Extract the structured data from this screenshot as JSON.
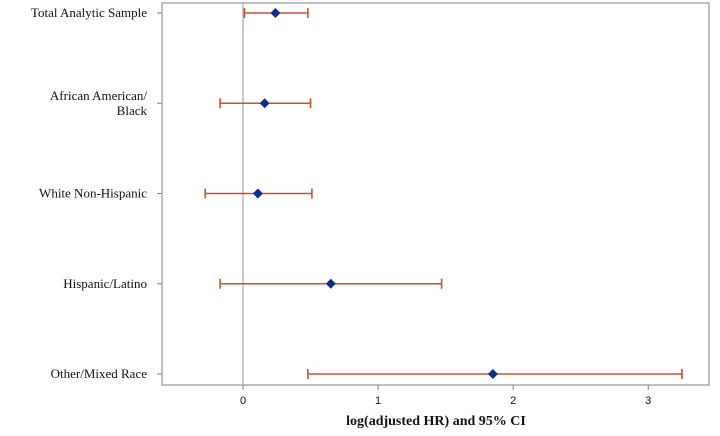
{
  "chart_data": {
    "type": "forest",
    "xlabel": "log(adjusted HR) and 95% CI",
    "ylabel": "",
    "xlim": [
      -0.6,
      3.45
    ],
    "xticks": [
      0,
      1,
      2,
      3
    ],
    "reference_line": 0,
    "grid": false,
    "categories": [
      [
        "Total Analytic Sample"
      ],
      [
        "African American/",
        "Black"
      ],
      [
        "White Non-Hispanic"
      ],
      [
        "Hispanic/Latino"
      ],
      [
        "Other/Mixed Race"
      ]
    ],
    "points": [
      {
        "estimate": 0.24,
        "lower": 0.01,
        "upper": 0.48
      },
      {
        "estimate": 0.16,
        "lower": -0.17,
        "upper": 0.5
      },
      {
        "estimate": 0.11,
        "lower": -0.28,
        "upper": 0.51
      },
      {
        "estimate": 0.65,
        "lower": -0.17,
        "upper": 1.47
      },
      {
        "estimate": 1.85,
        "lower": 0.48,
        "upper": 3.25
      }
    ]
  },
  "colors": {
    "point": "#0b2f8a",
    "interval": "#c8512b",
    "reference": "#a9a9a9",
    "frame": "#7f7f7f"
  }
}
